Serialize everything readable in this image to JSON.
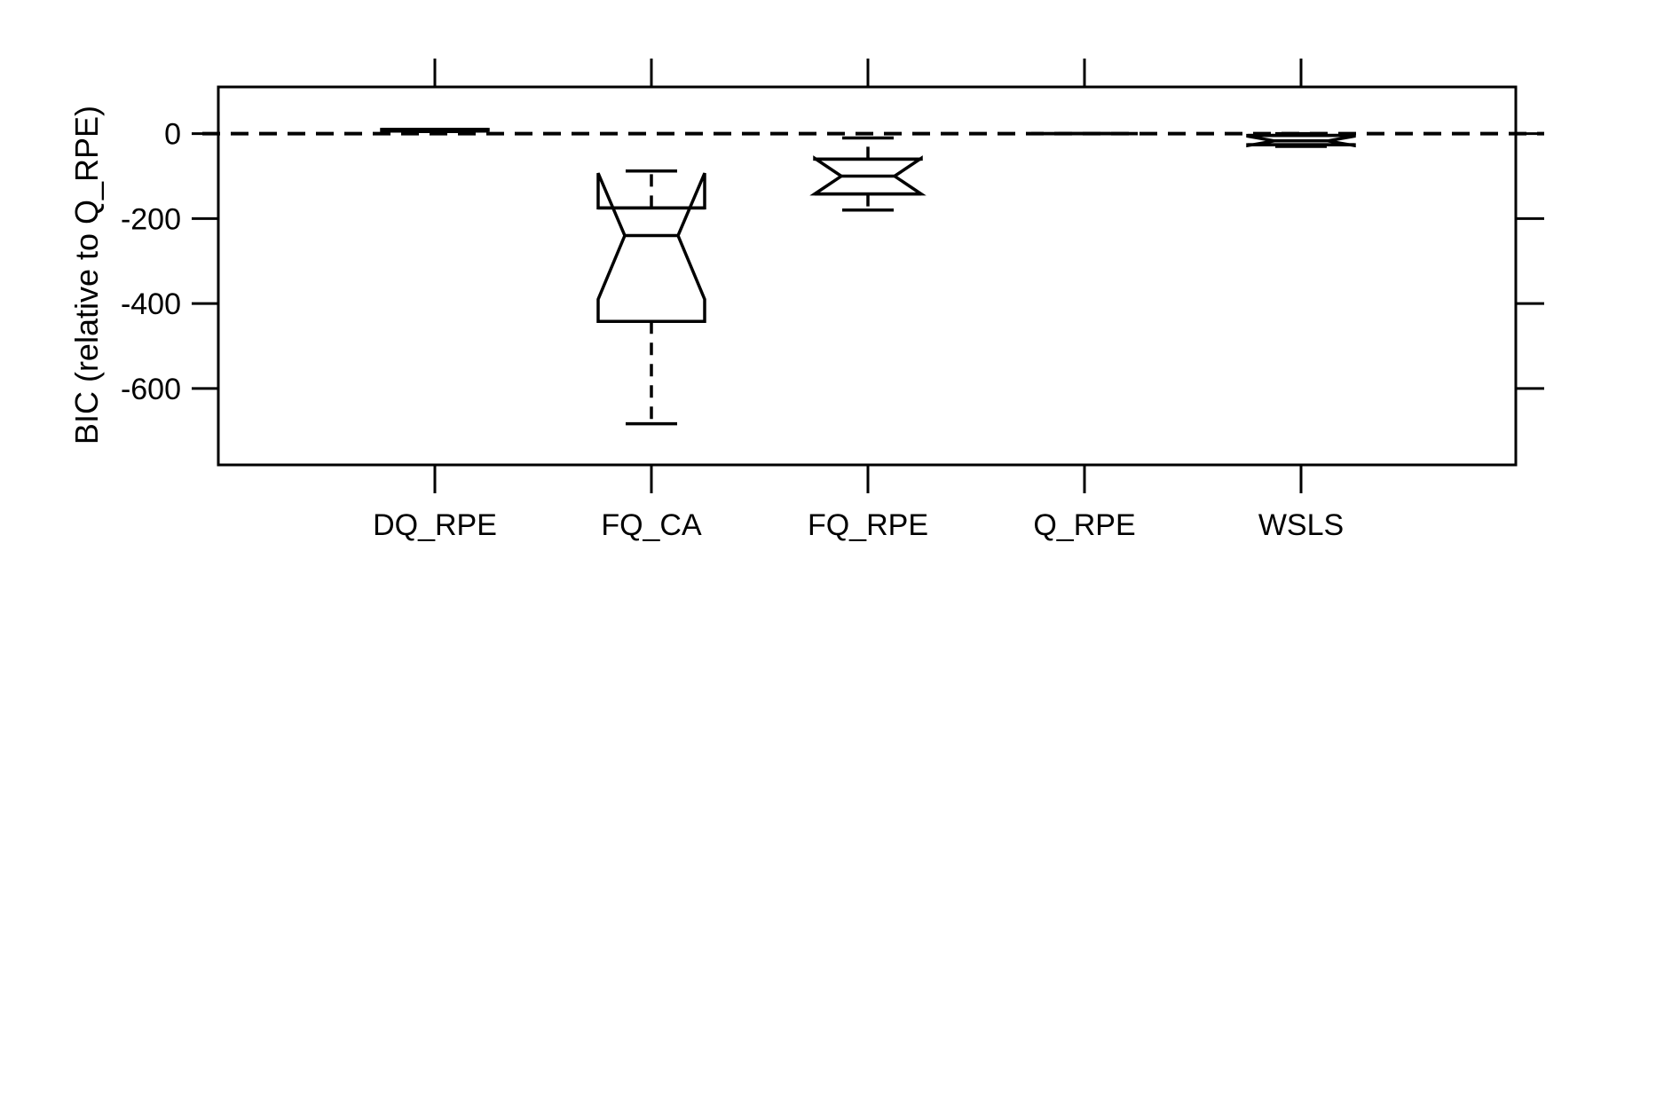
{
  "chart_data": {
    "type": "boxplot",
    "title": "",
    "xlabel": "",
    "ylabel": "BIC (relative to Q_RPE)",
    "ylim": [
      -780,
      110
    ],
    "yticks": [
      0,
      -200,
      -400,
      -600
    ],
    "ytick_labels": [
      "0",
      "-200",
      "-400",
      "-600"
    ],
    "reference_line": 0,
    "categories": [
      "DQ_RPE",
      "FQ_CA",
      "FQ_RPE",
      "Q_RPE",
      "WSLS"
    ],
    "boxes": [
      {
        "label": "DQ_RPE",
        "whisker_low": 5,
        "q1": 6,
        "notch_low": 7,
        "median": 8,
        "notch_high": 9,
        "q3": 10,
        "whisker_high": 10
      },
      {
        "label": "FQ_CA",
        "whisker_low": -683,
        "q1": -442,
        "notch_low": -390,
        "median": -240,
        "notch_high": -93,
        "q3": -175,
        "whisker_high": -88
      },
      {
        "label": "FQ_RPE",
        "whisker_low": -180,
        "q1": -142,
        "notch_low": -142,
        "median": -100,
        "notch_high": -58,
        "q3": -60,
        "whisker_high": -10
      },
      {
        "label": "Q_RPE",
        "whisker_low": 0,
        "q1": 0,
        "notch_low": 0,
        "median": 0,
        "notch_high": 0,
        "q3": 0,
        "whisker_high": 0
      },
      {
        "label": "WSLS",
        "whisker_low": -30,
        "q1": -26,
        "notch_low": -28,
        "median": -17,
        "notch_high": -6,
        "q3": -4,
        "whisker_high": 0
      }
    ]
  }
}
